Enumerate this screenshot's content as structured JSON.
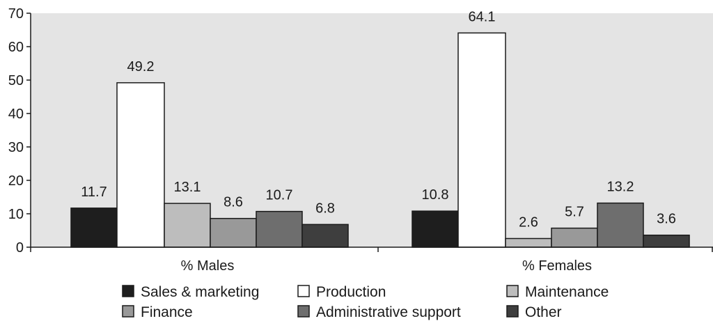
{
  "chart_data": {
    "type": "bar",
    "categories": [
      "% Males",
      "% Females"
    ],
    "series": [
      {
        "name": "Sales & marketing",
        "values": [
          11.7,
          10.8
        ],
        "color": "#1e1e1e"
      },
      {
        "name": "Production",
        "values": [
          49.2,
          64.1
        ],
        "color": "#ffffff"
      },
      {
        "name": "Maintenance",
        "values": [
          13.1,
          2.6
        ],
        "color": "#bdbdbd"
      },
      {
        "name": "Finance",
        "values": [
          8.6,
          5.7
        ],
        "color": "#999999"
      },
      {
        "name": "Administrative support",
        "values": [
          10.7,
          13.2
        ],
        "color": "#6e6e6e"
      },
      {
        "name": "Other",
        "values": [
          6.8,
          3.6
        ],
        "color": "#3e3e3e"
      }
    ],
    "data_labels": [
      [
        "11.7",
        "10.8"
      ],
      [
        "49.2",
        "64.1"
      ],
      [
        "13.1",
        "2.6"
      ],
      [
        "8.6",
        "5.7"
      ],
      [
        "10.7",
        "13.2"
      ],
      [
        "6.8",
        "3.6"
      ]
    ],
    "yticks": [
      "0",
      "10",
      "20",
      "30",
      "40",
      "50",
      "60",
      "70"
    ],
    "ylim": [
      0,
      70
    ],
    "title": "",
    "xlabel": "",
    "ylabel": "",
    "plot_background": "#e4e4e4",
    "grid": false,
    "legend_position": "bottom"
  }
}
